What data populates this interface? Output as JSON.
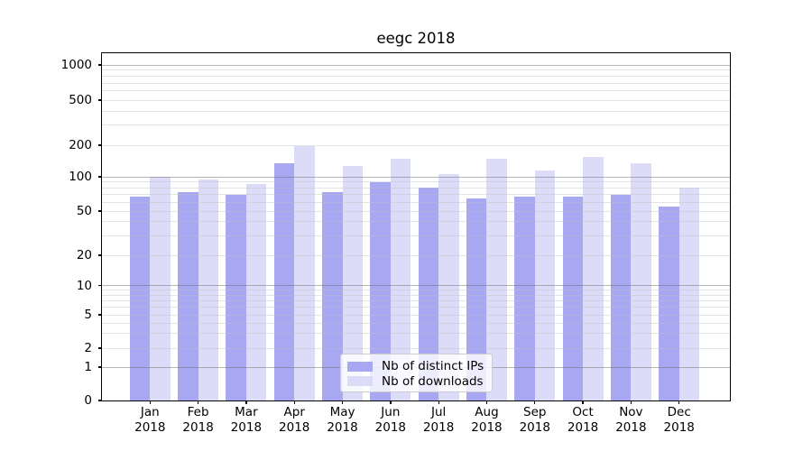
{
  "title": "eegc 2018",
  "legend": {
    "items": [
      {
        "label": "Nb of distinct IPs",
        "color": "#a7a7f2"
      },
      {
        "label": "Nb of downloads",
        "color": "#dcdcf8"
      }
    ]
  },
  "colors": {
    "major_grid": "#b0b0b0",
    "minor_grid": "#e4e4e4",
    "spine": "#000000",
    "background": "#ffffff"
  },
  "chart_data": {
    "type": "bar",
    "title": "eegc 2018",
    "categories": [
      "Jan",
      "Feb",
      "Mar",
      "Apr",
      "May",
      "Jun",
      "Jul",
      "Aug",
      "Sep",
      "Oct",
      "Nov",
      "Dec"
    ],
    "year": "2018",
    "series": [
      {
        "name": "Nb of distinct IPs",
        "color": "#a7a7f2",
        "values": [
          67,
          73,
          70,
          135,
          73,
          90,
          80,
          65,
          67,
          67,
          70,
          55
        ]
      },
      {
        "name": "Nb of downloads",
        "color": "#dcdcf8",
        "values": [
          100,
          94,
          86,
          195,
          128,
          150,
          107,
          148,
          115,
          155,
          135,
          80
        ]
      }
    ],
    "xlabel": "",
    "ylabel": "",
    "y_axis": {
      "scale": "log-like",
      "ticks": [
        0,
        1,
        2,
        5,
        10,
        20,
        50,
        100,
        200,
        500,
        1000
      ],
      "ylim": [
        0,
        1300
      ]
    },
    "grid": "on",
    "legend_position": "lower center"
  }
}
